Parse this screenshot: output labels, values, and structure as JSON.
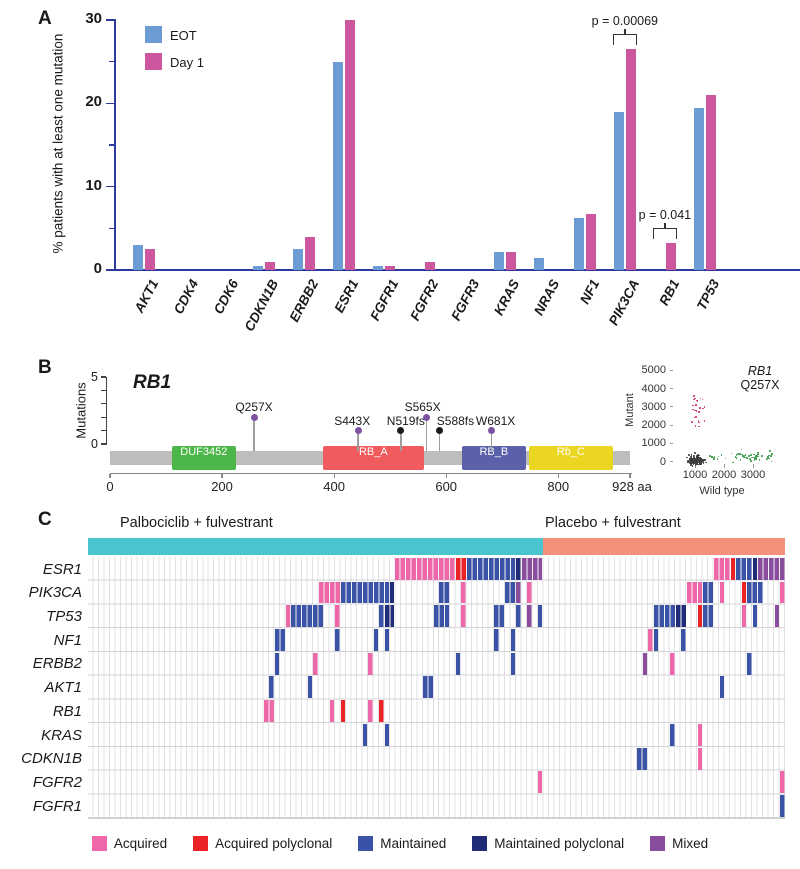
{
  "panels": {
    "a_label": "A",
    "b_label": "B",
    "c_label": "C"
  },
  "colors": {
    "axis_blue": "#2B3A9B",
    "backbone_grey": "#BDBDBD",
    "stem_grey": "#9E9E9E",
    "grid_col_line": "#E0E0E3",
    "grid_row_line": "#D4D4D8",
    "annotation": "#333333"
  },
  "chart_data": [
    {
      "id": "panel_a",
      "type": "bar",
      "ylabel": "% patients with at least one mutation",
      "ylim": [
        0,
        30
      ],
      "yticks": [
        0,
        10,
        20,
        30
      ],
      "yticks_minor": [
        5,
        15,
        25
      ],
      "categories": [
        "AKT1",
        "CDK4",
        "CDK6",
        "CDKN1B",
        "ERBB2",
        "ESR1",
        "FGFR1",
        "FGFR2",
        "FGFR3",
        "KRAS",
        "NRAS",
        "NF1",
        "PIK3CA",
        "RB1",
        "TP53"
      ],
      "series": [
        {
          "name": "EOT",
          "color": "#6D9CD5",
          "values": [
            3.0,
            0,
            0,
            0.5,
            2.5,
            25,
            0.5,
            0,
            0,
            2.2,
            1.5,
            6.2,
            19,
            0,
            19.5
          ]
        },
        {
          "name": "Day 1",
          "color": "#CC579F",
          "values": [
            2.5,
            0,
            0,
            1.0,
            4.0,
            30,
            0.5,
            1.0,
            0,
            2.2,
            0,
            6.7,
            26.5,
            3.2,
            21
          ]
        }
      ],
      "annotations": [
        {
          "text": "p = 0.00069",
          "category": "PIK3CA"
        },
        {
          "text": "p = 0.041",
          "category": "RB1"
        }
      ]
    },
    {
      "id": "panel_b_lollipop",
      "type": "lollipop",
      "gene": "RB1",
      "ylabel": "Mutations",
      "ylim": [
        0,
        5
      ],
      "xlim_aa": [
        0,
        928
      ],
      "xticks": [
        0,
        200,
        400,
        600,
        800
      ],
      "x_end_label": "928 aa",
      "mutations": [
        {
          "label": "Q257X",
          "aa": 257,
          "count": 2,
          "color": "#7B52A1"
        },
        {
          "label": "S443X",
          "aa": 443,
          "count": 1,
          "color": "#7B52A1"
        },
        {
          "label": "N519fs",
          "aa": 519,
          "count": 1,
          "color": "#1A1A1A"
        },
        {
          "label": "S565X",
          "aa": 565,
          "count": 2,
          "color": "#7B52A1"
        },
        {
          "label": "S588fs",
          "aa": 588,
          "count": 1,
          "color": "#1A1A1A"
        },
        {
          "label": "W681X",
          "aa": 681,
          "count": 1,
          "color": "#7B52A1"
        }
      ],
      "domains": [
        {
          "name": "DUF3452",
          "start": 110,
          "end": 225,
          "color": "#4CB648"
        },
        {
          "name": "RB_A",
          "start": 380,
          "end": 560,
          "color": "#F05B5E"
        },
        {
          "name": "RB_B",
          "start": 628,
          "end": 742,
          "color": "#5B60AB"
        },
        {
          "name": "Rb_C",
          "start": 748,
          "end": 897,
          "color": "#EBD621"
        }
      ]
    },
    {
      "id": "panel_b_scatter",
      "type": "scatter",
      "title_gene": "RB1",
      "title_mutation": "Q257X",
      "xlabel": "Wild type",
      "ylabel": "Mutant",
      "xticks": [
        1000,
        2000,
        3000
      ],
      "yticks": [
        0,
        1000,
        2000,
        3000,
        4000,
        5000
      ],
      "clusters": [
        {
          "name": "negative-droplets-dense",
          "color": "#3C3C3C",
          "n": 150,
          "x_mean": 1000,
          "x_sd": 60,
          "y_mean": 150,
          "y_sd": 40
        },
        {
          "name": "negative-droplets-spread",
          "color": "#3C3C3C",
          "n": 130,
          "x_mean": 1000,
          "x_sd": 140,
          "y_mean": 100,
          "y_sd": 130
        },
        {
          "name": "mutant-droplets",
          "color": "#D6336C",
          "n": 24,
          "x_mean": 1080,
          "x_sd": 120,
          "y_min": 1950,
          "y_max": 3900
        },
        {
          "name": "wildtype-droplets",
          "color": "#3E9C4B",
          "n": 60,
          "x_min": 1480,
          "x_max": 3630,
          "y_mean": 320,
          "y_sd": 140
        }
      ]
    },
    {
      "id": "panel_c_oncoprint",
      "type": "heatmap",
      "groups": [
        {
          "label": "Palbociclib + fulvestrant",
          "color": "#4AC4CD",
          "n_cols": 83
        },
        {
          "label": "Placebo + fulvestrant",
          "color": "#F5907C",
          "n_cols": 44
        }
      ],
      "genes": [
        "ESR1",
        "PIK3CA",
        "TP53",
        "NF1",
        "ERBB2",
        "AKT1",
        "RB1",
        "KRAS",
        "CDKN1B",
        "FGFR2",
        "FGFR1"
      ],
      "classes": {
        "A": {
          "label": "Acquired",
          "color": "#EE67A9"
        },
        "P": {
          "label": "Acquired polyclonal",
          "color": "#EB2327"
        },
        "M": {
          "label": "Maintained",
          "color": "#3A53A7"
        },
        "N": {
          "label": "Maintained polyclonal",
          "color": "#202C77"
        },
        "X": {
          "label": "Mixed",
          "color": "#8A4D9E"
        }
      },
      "legend_order": [
        "A",
        "P",
        "M",
        "N",
        "X"
      ],
      "cell_format": [
        "gene",
        "group",
        "start_col",
        "end_col",
        "class"
      ],
      "cells": [
        [
          "ESR1",
          0,
          56,
          66,
          "A"
        ],
        [
          "ESR1",
          0,
          67,
          68,
          "P"
        ],
        [
          "ESR1",
          0,
          69,
          77,
          "M"
        ],
        [
          "ESR1",
          0,
          78,
          78,
          "N"
        ],
        [
          "ESR1",
          0,
          79,
          82,
          "X"
        ],
        [
          "ESR1",
          1,
          31,
          33,
          "A"
        ],
        [
          "ESR1",
          1,
          34,
          34,
          "P"
        ],
        [
          "ESR1",
          1,
          35,
          37,
          "M"
        ],
        [
          "ESR1",
          1,
          38,
          38,
          "N"
        ],
        [
          "ESR1",
          1,
          39,
          43,
          "X"
        ],
        [
          "PIK3CA",
          0,
          42,
          45,
          "A"
        ],
        [
          "PIK3CA",
          0,
          46,
          54,
          "M"
        ],
        [
          "PIK3CA",
          0,
          55,
          55,
          "N"
        ],
        [
          "PIK3CA",
          0,
          64,
          65,
          "M"
        ],
        [
          "PIK3CA",
          0,
          68,
          68,
          "A"
        ],
        [
          "PIK3CA",
          0,
          76,
          77,
          "M"
        ],
        [
          "PIK3CA",
          0,
          78,
          78,
          "X"
        ],
        [
          "PIK3CA",
          0,
          80,
          80,
          "A"
        ],
        [
          "PIK3CA",
          1,
          26,
          28,
          "A"
        ],
        [
          "PIK3CA",
          1,
          29,
          30,
          "M"
        ],
        [
          "PIK3CA",
          1,
          32,
          32,
          "A"
        ],
        [
          "PIK3CA",
          1,
          36,
          36,
          "P"
        ],
        [
          "PIK3CA",
          1,
          37,
          39,
          "M"
        ],
        [
          "PIK3CA",
          1,
          43,
          43,
          "A"
        ],
        [
          "TP53",
          0,
          36,
          36,
          "A"
        ],
        [
          "TP53",
          0,
          37,
          42,
          "M"
        ],
        [
          "TP53",
          0,
          45,
          45,
          "A"
        ],
        [
          "TP53",
          0,
          53,
          53,
          "M"
        ],
        [
          "TP53",
          0,
          54,
          55,
          "N"
        ],
        [
          "TP53",
          0,
          63,
          65,
          "M"
        ],
        [
          "TP53",
          0,
          68,
          68,
          "A"
        ],
        [
          "TP53",
          0,
          74,
          75,
          "M"
        ],
        [
          "TP53",
          0,
          78,
          78,
          "M"
        ],
        [
          "TP53",
          0,
          80,
          80,
          "X"
        ],
        [
          "TP53",
          0,
          82,
          82,
          "M"
        ],
        [
          "TP53",
          1,
          20,
          23,
          "M"
        ],
        [
          "TP53",
          1,
          24,
          25,
          "N"
        ],
        [
          "TP53",
          1,
          28,
          28,
          "P"
        ],
        [
          "TP53",
          1,
          29,
          30,
          "M"
        ],
        [
          "TP53",
          1,
          36,
          36,
          "A"
        ],
        [
          "TP53",
          1,
          38,
          38,
          "M"
        ],
        [
          "TP53",
          1,
          42,
          42,
          "X"
        ],
        [
          "NF1",
          0,
          34,
          35,
          "M"
        ],
        [
          "NF1",
          0,
          45,
          45,
          "M"
        ],
        [
          "NF1",
          0,
          52,
          52,
          "M"
        ],
        [
          "NF1",
          0,
          54,
          54,
          "M"
        ],
        [
          "NF1",
          0,
          74,
          74,
          "M"
        ],
        [
          "NF1",
          0,
          77,
          77,
          "M"
        ],
        [
          "NF1",
          1,
          19,
          19,
          "A"
        ],
        [
          "NF1",
          1,
          20,
          20,
          "M"
        ],
        [
          "NF1",
          1,
          25,
          25,
          "M"
        ],
        [
          "ERBB2",
          0,
          34,
          34,
          "M"
        ],
        [
          "ERBB2",
          0,
          41,
          41,
          "A"
        ],
        [
          "ERBB2",
          0,
          51,
          51,
          "A"
        ],
        [
          "ERBB2",
          0,
          67,
          67,
          "M"
        ],
        [
          "ERBB2",
          0,
          77,
          77,
          "M"
        ],
        [
          "ERBB2",
          1,
          18,
          18,
          "X"
        ],
        [
          "ERBB2",
          1,
          23,
          23,
          "A"
        ],
        [
          "ERBB2",
          1,
          37,
          37,
          "M"
        ],
        [
          "AKT1",
          0,
          33,
          33,
          "M"
        ],
        [
          "AKT1",
          0,
          40,
          40,
          "M"
        ],
        [
          "AKT1",
          0,
          61,
          62,
          "M"
        ],
        [
          "AKT1",
          1,
          32,
          32,
          "M"
        ],
        [
          "RB1",
          0,
          32,
          33,
          "A"
        ],
        [
          "RB1",
          0,
          44,
          44,
          "A"
        ],
        [
          "RB1",
          0,
          46,
          46,
          "P"
        ],
        [
          "RB1",
          0,
          51,
          51,
          "A"
        ],
        [
          "RB1",
          0,
          53,
          53,
          "P"
        ],
        [
          "KRAS",
          0,
          50,
          50,
          "M"
        ],
        [
          "KRAS",
          0,
          54,
          54,
          "M"
        ],
        [
          "KRAS",
          1,
          23,
          23,
          "M"
        ],
        [
          "KRAS",
          1,
          28,
          28,
          "A"
        ],
        [
          "CDKN1B",
          1,
          17,
          18,
          "M"
        ],
        [
          "CDKN1B",
          1,
          28,
          28,
          "A"
        ],
        [
          "FGFR2",
          0,
          82,
          82,
          "A"
        ],
        [
          "FGFR2",
          1,
          43,
          43,
          "A"
        ],
        [
          "FGFR1",
          1,
          43,
          43,
          "M"
        ]
      ]
    }
  ]
}
